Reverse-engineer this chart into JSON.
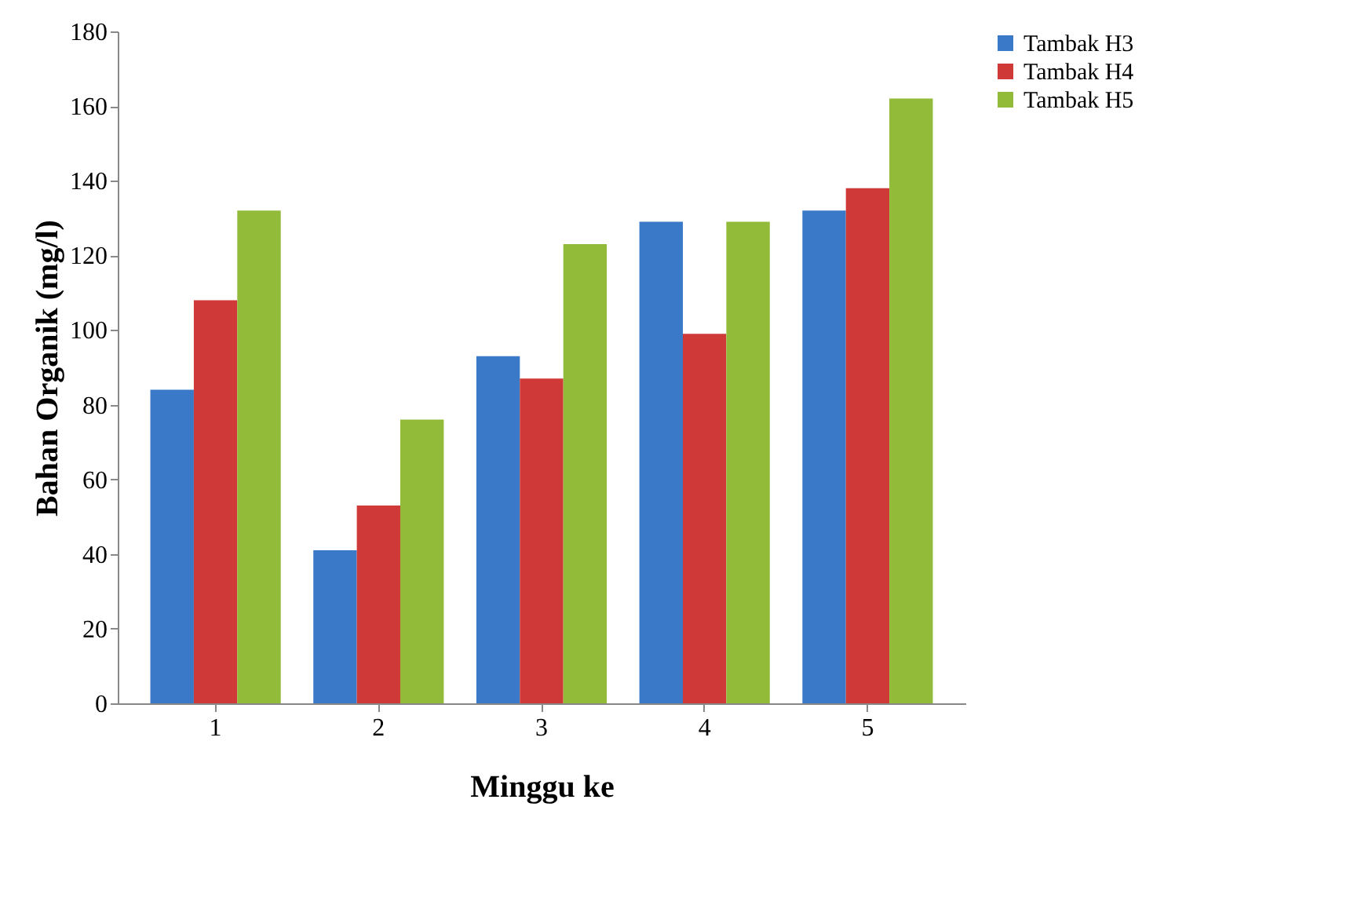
{
  "chart_data": {
    "type": "bar",
    "xlabel": "Minggu ke",
    "ylabel": "Bahan Organik (mg/l)",
    "categories": [
      "1",
      "2",
      "3",
      "4",
      "5"
    ],
    "series": [
      {
        "name": "Tambak H3",
        "color": "#3a78c8",
        "values": [
          84,
          41,
          93,
          129,
          132
        ]
      },
      {
        "name": "Tambak H4",
        "color": "#cf3a38",
        "values": [
          108,
          53,
          87,
          99,
          138
        ]
      },
      {
        "name": "Tambak H5",
        "color": "#92bb3a",
        "values": [
          132,
          76,
          123,
          129,
          162
        ]
      }
    ],
    "ylim": [
      0,
      180
    ],
    "yticks": [
      0,
      20,
      40,
      60,
      80,
      100,
      120,
      140,
      160,
      180
    ],
    "grid": false,
    "legend": "right"
  }
}
